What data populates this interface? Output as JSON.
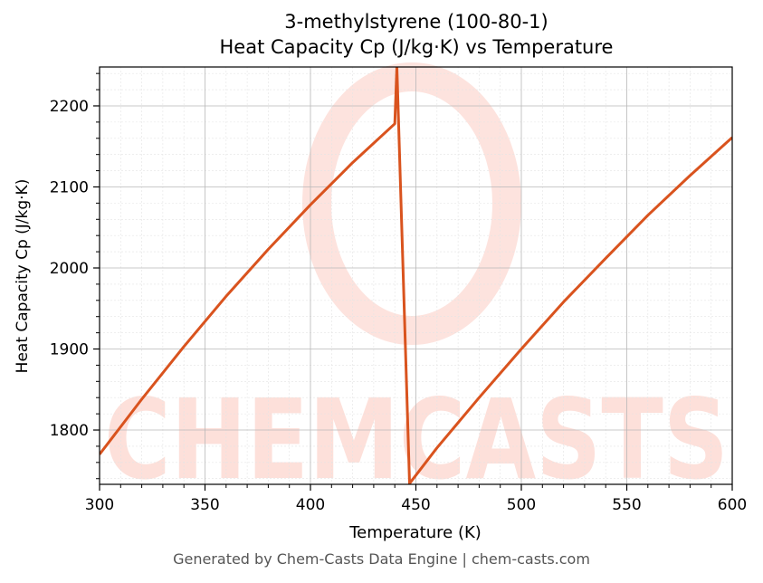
{
  "chart_data": {
    "type": "line",
    "title": "3-methylstyrene (100-80-1)",
    "subtitle": "Heat Capacity Cp (J/kg·K) vs Temperature",
    "xlabel": "Temperature (K)",
    "ylabel": "Heat Capacity Cp (J/kg·K)",
    "xlim": [
      300,
      600
    ],
    "ylim": [
      1733,
      2248
    ],
    "x_ticks": [
      "300",
      "350",
      "400",
      "450",
      "500",
      "550",
      "600"
    ],
    "y_ticks": [
      "1800",
      "1900",
      "2000",
      "2100",
      "2200"
    ],
    "grid": true,
    "line_color": "#d9531e",
    "series": [
      {
        "points": [
          [
            300,
            1770
          ],
          [
            320,
            1838
          ],
          [
            340,
            1903
          ],
          [
            360,
            1965
          ],
          [
            380,
            2023
          ],
          [
            400,
            2078
          ],
          [
            420,
            2130
          ],
          [
            440,
            2178
          ],
          [
            441,
            2248
          ],
          [
            447,
            1734
          ],
          [
            460,
            1778
          ],
          [
            480,
            1840
          ],
          [
            500,
            1900
          ],
          [
            520,
            1958
          ],
          [
            540,
            2012
          ],
          [
            560,
            2065
          ],
          [
            580,
            2114
          ],
          [
            600,
            2161
          ]
        ]
      }
    ]
  },
  "watermark": {
    "text": "CHEMCASTS",
    "color": "#fde0da"
  },
  "footer": "Generated by Chem-Casts Data Engine | chem-casts.com"
}
